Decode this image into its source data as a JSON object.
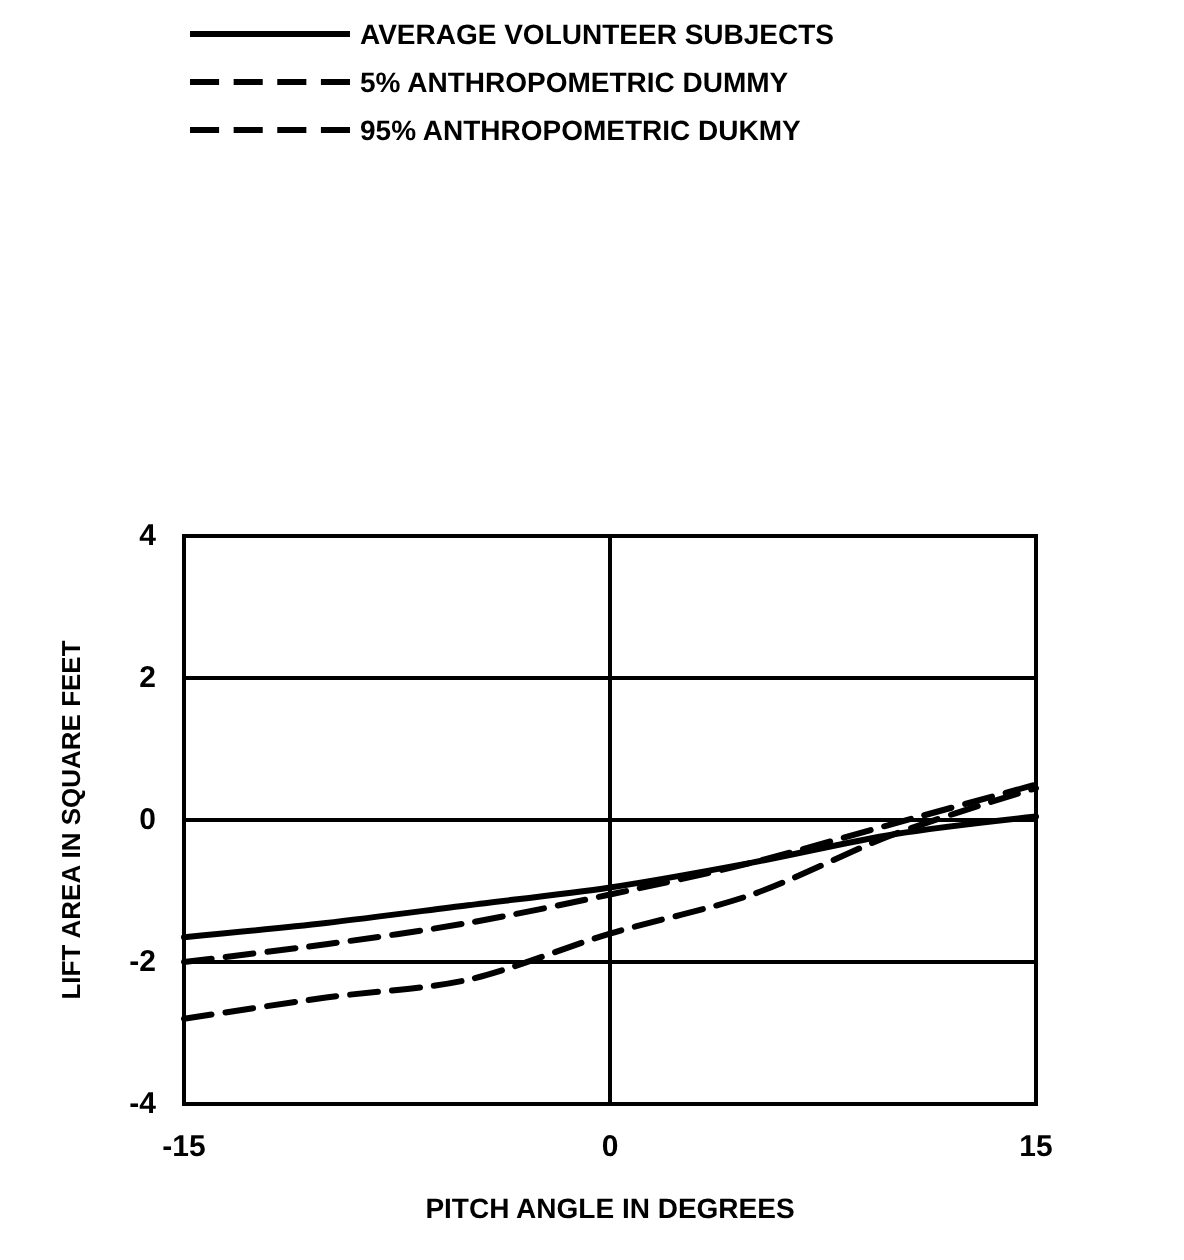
{
  "chart_data": {
    "type": "line",
    "xlabel": "PITCH ANGLE IN DEGREES",
    "ylabel": "LIFT AREA IN SQUARE FEET",
    "x": [
      -15,
      -10,
      -5,
      0,
      5,
      10,
      15
    ],
    "series": [
      {
        "name": "AVERAGE VOLUNTEER SUBJECTS",
        "color": "#000000",
        "line_style": "solid",
        "values": [
          -1.65,
          -1.45,
          -1.2,
          -0.95,
          -0.6,
          -0.2,
          0.05
        ]
      },
      {
        "name": "5% ANTHROPOMETRIC DUMMY",
        "color": "#000000",
        "line_style": "dashed",
        "values": [
          -2.0,
          -1.75,
          -1.45,
          -1.05,
          -0.6,
          -0.05,
          0.5
        ]
      },
      {
        "name": "95% ANTHROPOMETRIC DUKMY",
        "color": "#000000",
        "line_style": "dashed",
        "values": [
          -2.8,
          -2.5,
          -2.25,
          -1.6,
          -1.05,
          -0.2,
          0.45
        ]
      }
    ],
    "xlim": [
      -15,
      15
    ],
    "xticks": [
      -15,
      0,
      15
    ],
    "ylim": [
      -4,
      4
    ],
    "yticks": [
      -4,
      -2,
      0,
      2,
      4
    ],
    "grid": true,
    "legend": "top",
    "marker": "none"
  }
}
